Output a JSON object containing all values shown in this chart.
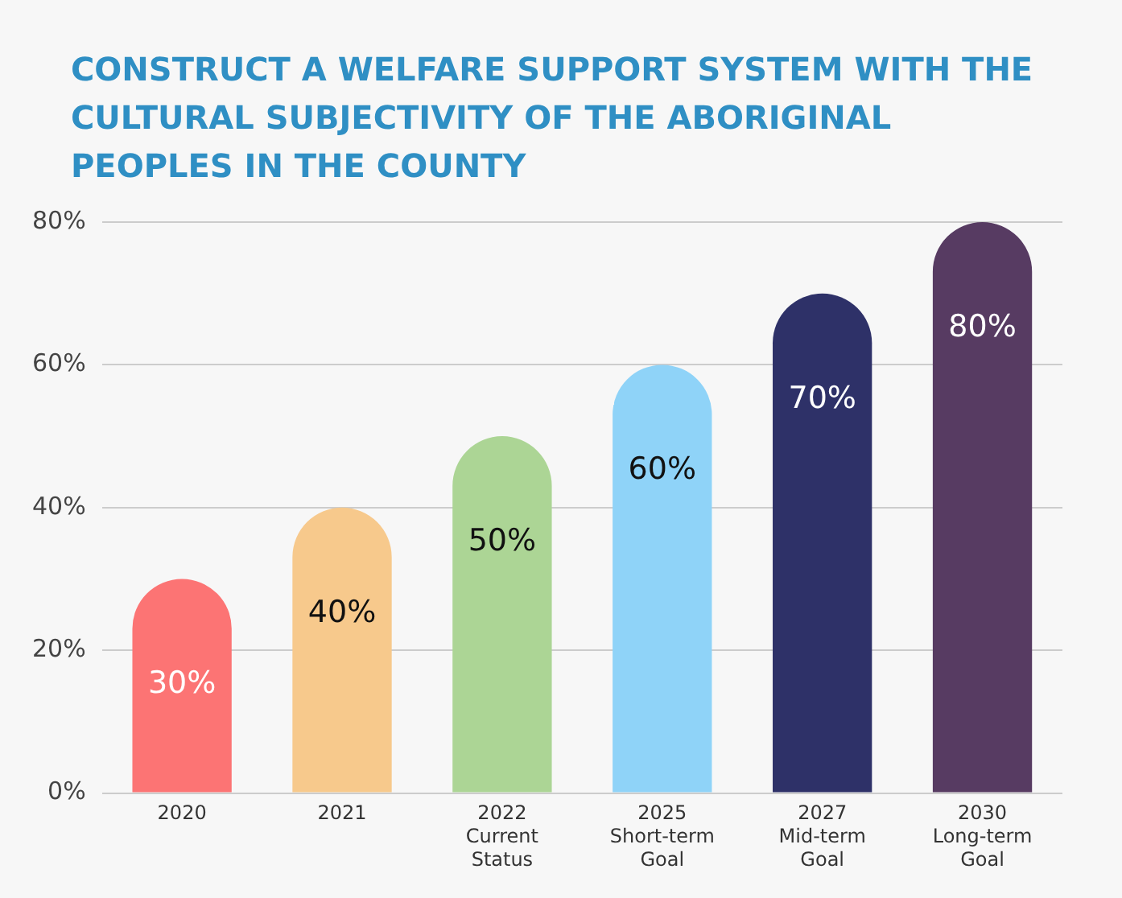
{
  "chart_data": {
    "type": "bar",
    "title": "CONSTRUCT A WELFARE SUPPORT SYSTEM WITH THE CULTURAL SUBJECTIVITY OF THE ABORIGINAL PEOPLES IN THE COUNTY",
    "categories": [
      "2020",
      "2021",
      "2022 Current Status",
      "2025 Short-term Goal",
      "2027 Mid-term Goal",
      "2030 Long-term Goal"
    ],
    "values": [
      30,
      40,
      50,
      60,
      70,
      80
    ],
    "colors": [
      "#fc7474",
      "#f7c98c",
      "#acd595",
      "#8fd3f8",
      "#2e3168",
      "#573b62"
    ],
    "value_labels": [
      "30%",
      "40%",
      "50%",
      "60%",
      "70%",
      "80%"
    ],
    "ylim": [
      0,
      80
    ],
    "yticks": [
      {
        "value": 0,
        "label": "0%"
      },
      {
        "value": 20,
        "label": "20%"
      },
      {
        "value": 40,
        "label": "40%"
      },
      {
        "value": 60,
        "label": "60%"
      },
      {
        "value": 80,
        "label": "80%"
      }
    ],
    "grid": "y"
  }
}
